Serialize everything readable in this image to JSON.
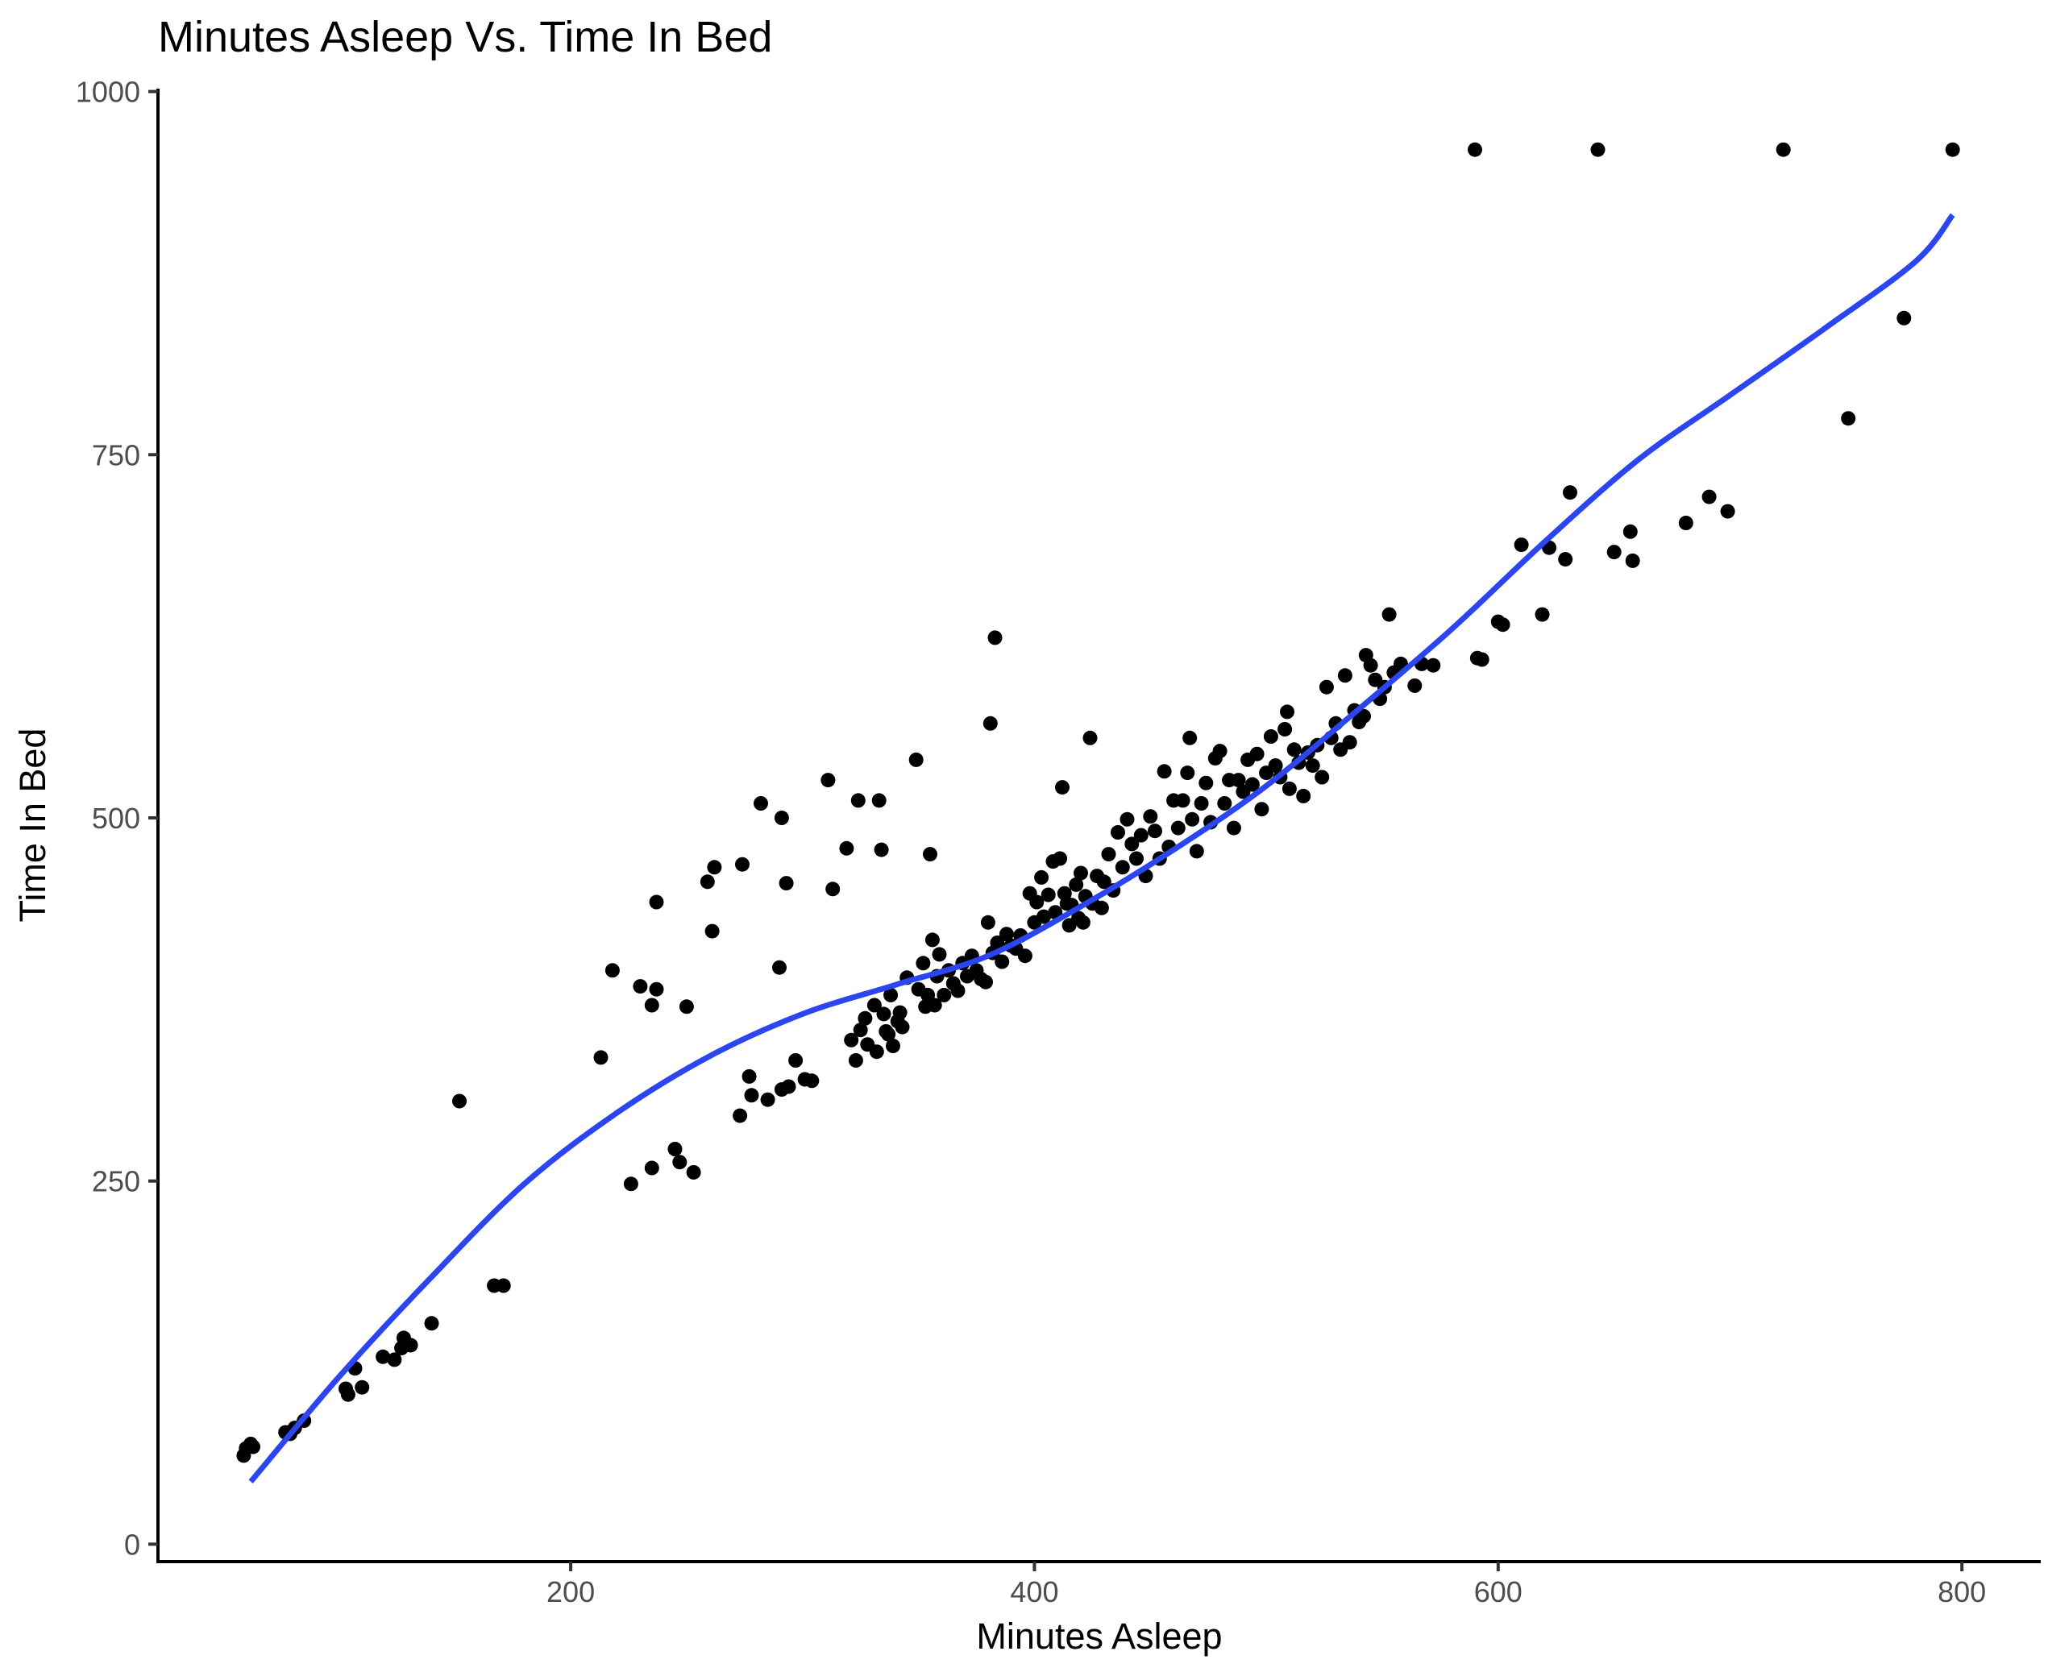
{
  "chart_data": {
    "type": "scatter",
    "title": "Minutes Asleep Vs. Time In Bed",
    "xlabel": "Minutes Asleep",
    "ylabel": "Time In Bed",
    "xlim": [
      22,
      834
    ],
    "ylim": [
      -12,
      1002
    ],
    "x_ticks": [
      200,
      400,
      600,
      800
    ],
    "y_ticks": [
      0,
      250,
      500,
      750,
      1000
    ],
    "grid": false,
    "legend": "none",
    "colors": {
      "points": "#000000",
      "smooth": "#2b46f0",
      "axis": "#000000",
      "tick_label": "#4d4d4d"
    },
    "series": [
      {
        "kind": "points",
        "points": [
          [
            59,
            61
          ],
          [
            60,
            66
          ],
          [
            62,
            69
          ],
          [
            63,
            67
          ],
          [
            77,
            77
          ],
          [
            79,
            76
          ],
          [
            81,
            80
          ],
          [
            85,
            85
          ],
          [
            103,
            107
          ],
          [
            104,
            103
          ],
          [
            107,
            121
          ],
          [
            110,
            108
          ],
          [
            119,
            129
          ],
          [
            124,
            127
          ],
          [
            127,
            135
          ],
          [
            128,
            142
          ],
          [
            131,
            137
          ],
          [
            140,
            152
          ],
          [
            152,
            305
          ],
          [
            167,
            178
          ],
          [
            171,
            178
          ],
          [
            213,
            335
          ],
          [
            218,
            395
          ],
          [
            226,
            248
          ],
          [
            230,
            384
          ],
          [
            235,
            259
          ],
          [
            235,
            371
          ],
          [
            237,
            442
          ],
          [
            237,
            382
          ],
          [
            245,
            272
          ],
          [
            247,
            263
          ],
          [
            250,
            370
          ],
          [
            253,
            256
          ],
          [
            259,
            456
          ],
          [
            261,
            422
          ],
          [
            262,
            466
          ],
          [
            273,
            295
          ],
          [
            274,
            468
          ],
          [
            277,
            322
          ],
          [
            278,
            309
          ],
          [
            282,
            510
          ],
          [
            285,
            306
          ],
          [
            290,
            397
          ],
          [
            291,
            313
          ],
          [
            291,
            500
          ],
          [
            293,
            455
          ],
          [
            294,
            315
          ],
          [
            297,
            333
          ],
          [
            301,
            320
          ],
          [
            304,
            319
          ],
          [
            311,
            526
          ],
          [
            313,
            451
          ],
          [
            319,
            479
          ],
          [
            321,
            347
          ],
          [
            323,
            333
          ],
          [
            324,
            512
          ],
          [
            325,
            354
          ],
          [
            327,
            362
          ],
          [
            328,
            344
          ],
          [
            331,
            371
          ],
          [
            332,
            339
          ],
          [
            333,
            512
          ],
          [
            334,
            478
          ],
          [
            335,
            365
          ],
          [
            336,
            353
          ],
          [
            337,
            351
          ],
          [
            338,
            378
          ],
          [
            339,
            343
          ],
          [
            341,
            360
          ],
          [
            342,
            366
          ],
          [
            343,
            356
          ],
          [
            345,
            390
          ],
          [
            349,
            540
          ],
          [
            350,
            382
          ],
          [
            352,
            400
          ],
          [
            353,
            370
          ],
          [
            354,
            378
          ],
          [
            355,
            475
          ],
          [
            356,
            416
          ],
          [
            357,
            371
          ],
          [
            358,
            391
          ],
          [
            359,
            406
          ],
          [
            361,
            378
          ],
          [
            363,
            395
          ],
          [
            365,
            386
          ],
          [
            367,
            381
          ],
          [
            369,
            400
          ],
          [
            371,
            391
          ],
          [
            373,
            405
          ],
          [
            375,
            395
          ],
          [
            377,
            389
          ],
          [
            379,
            387
          ],
          [
            380,
            428
          ],
          [
            381,
            565
          ],
          [
            382,
            407
          ],
          [
            383,
            624
          ],
          [
            384,
            414
          ],
          [
            386,
            401
          ],
          [
            388,
            420
          ],
          [
            390,
            412
          ],
          [
            392,
            410
          ],
          [
            394,
            419
          ],
          [
            396,
            405
          ],
          [
            398,
            448
          ],
          [
            400,
            428
          ],
          [
            401,
            442
          ],
          [
            403,
            459
          ],
          [
            404,
            432
          ],
          [
            406,
            447
          ],
          [
            408,
            470
          ],
          [
            409,
            435
          ],
          [
            411,
            472
          ],
          [
            412,
            521
          ],
          [
            413,
            448
          ],
          [
            414,
            441
          ],
          [
            415,
            426
          ],
          [
            416,
            440
          ],
          [
            418,
            454
          ],
          [
            419,
            431
          ],
          [
            420,
            462
          ],
          [
            421,
            428
          ],
          [
            422,
            446
          ],
          [
            424,
            555
          ],
          [
            425,
            441
          ],
          [
            427,
            460
          ],
          [
            429,
            438
          ],
          [
            430,
            456
          ],
          [
            432,
            475
          ],
          [
            434,
            450
          ],
          [
            436,
            490
          ],
          [
            438,
            466
          ],
          [
            440,
            499
          ],
          [
            442,
            482
          ],
          [
            444,
            472
          ],
          [
            446,
            488
          ],
          [
            448,
            460
          ],
          [
            450,
            501
          ],
          [
            452,
            491
          ],
          [
            454,
            472
          ],
          [
            456,
            532
          ],
          [
            458,
            480
          ],
          [
            460,
            512
          ],
          [
            462,
            493
          ],
          [
            464,
            512
          ],
          [
            466,
            531
          ],
          [
            467,
            555
          ],
          [
            468,
            499
          ],
          [
            470,
            477
          ],
          [
            472,
            510
          ],
          [
            474,
            524
          ],
          [
            476,
            497
          ],
          [
            478,
            541
          ],
          [
            480,
            546
          ],
          [
            482,
            510
          ],
          [
            484,
            526
          ],
          [
            486,
            493
          ],
          [
            488,
            526
          ],
          [
            490,
            518
          ],
          [
            492,
            540
          ],
          [
            494,
            523
          ],
          [
            496,
            544
          ],
          [
            498,
            506
          ],
          [
            500,
            531
          ],
          [
            502,
            556
          ],
          [
            504,
            536
          ],
          [
            506,
            528
          ],
          [
            508,
            561
          ],
          [
            509,
            573
          ],
          [
            510,
            520
          ],
          [
            512,
            547
          ],
          [
            514,
            538
          ],
          [
            516,
            515
          ],
          [
            518,
            545
          ],
          [
            520,
            536
          ],
          [
            522,
            550
          ],
          [
            524,
            528
          ],
          [
            526,
            590
          ],
          [
            528,
            555
          ],
          [
            530,
            565
          ],
          [
            532,
            547
          ],
          [
            534,
            598
          ],
          [
            536,
            552
          ],
          [
            538,
            574
          ],
          [
            540,
            566
          ],
          [
            542,
            570
          ],
          [
            543,
            612
          ],
          [
            545,
            605
          ],
          [
            547,
            595
          ],
          [
            549,
            582
          ],
          [
            551,
            590
          ],
          [
            553,
            640
          ],
          [
            555,
            600
          ],
          [
            558,
            606
          ],
          [
            564,
            591
          ],
          [
            567,
            606
          ],
          [
            572,
            605
          ],
          [
            590,
            960
          ],
          [
            591,
            610
          ],
          [
            593,
            609
          ],
          [
            600,
            635
          ],
          [
            602,
            633
          ],
          [
            610,
            688
          ],
          [
            619,
            640
          ],
          [
            622,
            686
          ],
          [
            629,
            678
          ],
          [
            631,
            724
          ],
          [
            643,
            960
          ],
          [
            650,
            683
          ],
          [
            657,
            697
          ],
          [
            658,
            677
          ],
          [
            681,
            703
          ],
          [
            691,
            721
          ],
          [
            699,
            711
          ],
          [
            723,
            960
          ],
          [
            751,
            775
          ],
          [
            775,
            844
          ],
          [
            796,
            960
          ]
        ]
      },
      {
        "kind": "smooth",
        "points": [
          [
            62,
            43
          ],
          [
            100,
            115
          ],
          [
            140,
            184
          ],
          [
            180,
            248
          ],
          [
            220,
            297
          ],
          [
            260,
            336
          ],
          [
            300,
            365
          ],
          [
            340,
            385
          ],
          [
            380,
            405
          ],
          [
            420,
            439
          ],
          [
            460,
            478
          ],
          [
            500,
            522
          ],
          [
            540,
            575
          ],
          [
            580,
            630
          ],
          [
            620,
            690
          ],
          [
            660,
            746
          ],
          [
            700,
            791
          ],
          [
            740,
            836
          ],
          [
            780,
            883
          ],
          [
            796,
            915
          ]
        ]
      }
    ]
  }
}
